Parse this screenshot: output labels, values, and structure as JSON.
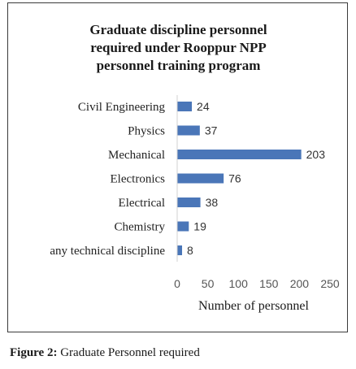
{
  "chart_data": {
    "type": "bar",
    "orientation": "horizontal",
    "title": "Graduate discipline personnel required under Rooppur NPP personnel training program",
    "title_lines": [
      "Graduate discipline personnel",
      "required under Rooppur NPP",
      "personnel training program"
    ],
    "categories": [
      "Civil Engineering",
      "Physics",
      "Mechanical",
      "Electronics",
      "Electrical",
      "Chemistry",
      "any technical discipline"
    ],
    "values": [
      24,
      37,
      203,
      76,
      38,
      19,
      8
    ],
    "xlabel": "Number of personnel",
    "ylabel": "",
    "xlim": [
      0,
      250
    ],
    "xticks": [
      0,
      50,
      100,
      150,
      200,
      250
    ],
    "grid": false,
    "data_labels": true,
    "bar_color": "#4a76b8"
  },
  "caption": {
    "label": "Figure 2:",
    "text": " Graduate Personnel required"
  }
}
